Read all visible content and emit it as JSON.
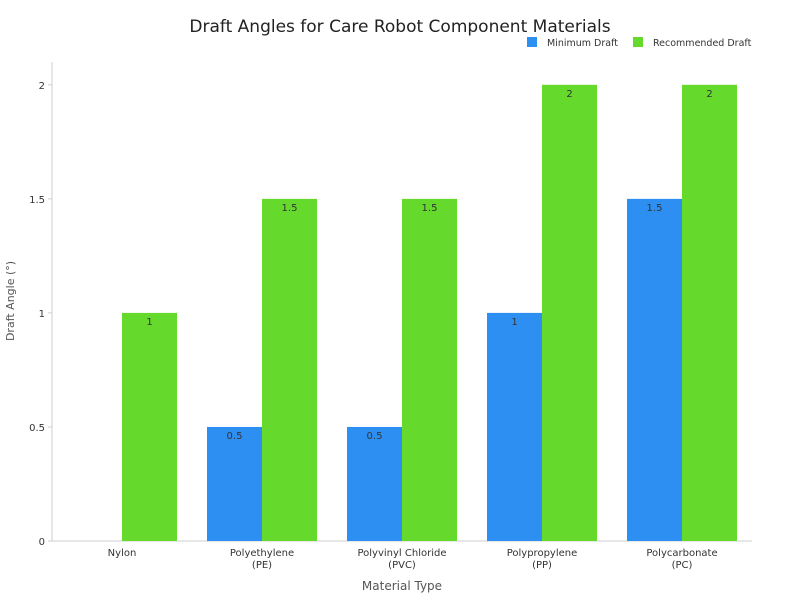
{
  "chart_data": {
    "type": "bar",
    "title": "Draft Angles for Care Robot Component Materials",
    "xlabel": "Material Type",
    "ylabel": "Draft Angle (°)",
    "categories": [
      [
        "Nylon"
      ],
      [
        "Polyethylene",
        "(PE)"
      ],
      [
        "Polyvinyl Chloride",
        "(PVC)"
      ],
      [
        "Polypropylene",
        "(PP)"
      ],
      [
        "Polycarbonate",
        "(PC)"
      ]
    ],
    "series": [
      {
        "name": "Minimum Draft",
        "color": "#2e8ff3",
        "values": [
          0,
          0.5,
          0.5,
          1,
          1.5
        ]
      },
      {
        "name": "Recommended Draft",
        "color": "#65d92c",
        "values": [
          1,
          1.5,
          1.5,
          2,
          2
        ]
      }
    ],
    "ylim": [
      0,
      2.1
    ],
    "yticks": [
      0,
      0.5,
      1,
      1.5,
      2
    ],
    "ytick_labels": [
      "0",
      "0.5",
      "1",
      "1.5",
      "2"
    ],
    "grid": false,
    "legend_position": "top-right",
    "show_data_labels": true
  }
}
